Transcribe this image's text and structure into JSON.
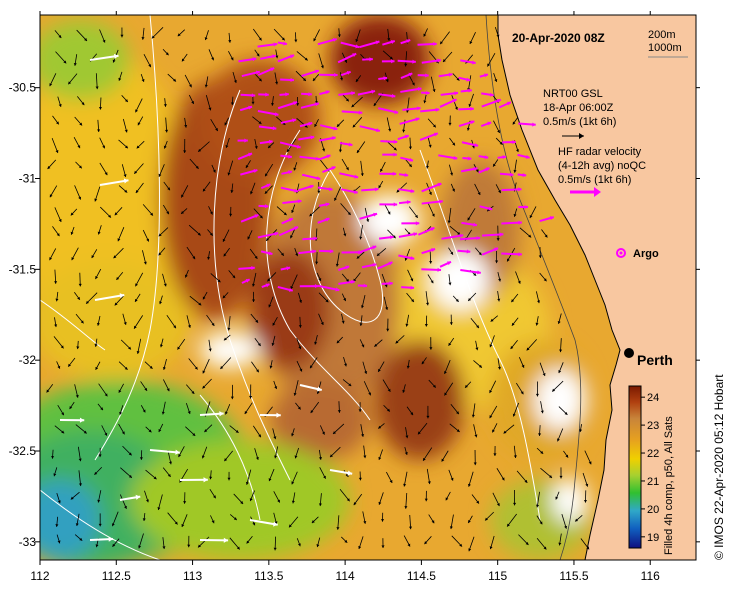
{
  "map": {
    "date_label": "20-Apr-2020 08Z",
    "isobath_labels": [
      "200m",
      "1000m"
    ],
    "gsl_legend": [
      "NRT00 GSL",
      "18-Apr 06:00Z",
      "0.5m/s (1kt 6h)"
    ],
    "radar_legend": [
      "HF radar velocity",
      "(4-12h avg) noQC",
      "0.5m/s (1kt 6h)"
    ],
    "argo_label": "Argo",
    "city_label": "Perth",
    "colorbar_title": "Filled 4h comp, p50, All Sats",
    "credit": "© IMOS 22-Apr-2020 05:12 Hobart",
    "colors": {
      "land": "#f8c7a0",
      "radar_vectors": "#ff00ff",
      "argo": "#ff00ff",
      "contours": "#ffffff"
    }
  },
  "axes": {
    "x_ticks": [
      "112",
      "112.5",
      "113",
      "113.5",
      "114",
      "114.5",
      "115",
      "115.5",
      "116"
    ],
    "y_ticks": [
      "-30.5",
      "-31",
      "-31.5",
      "-32",
      "-32.5",
      "-33"
    ],
    "x_range": [
      112,
      116.3
    ],
    "y_range": [
      -30.1,
      -33.1
    ]
  },
  "colorbar": {
    "ticks": [
      "24",
      "23",
      "22",
      "21",
      "20",
      "19"
    ],
    "range": [
      18.6,
      24.4
    ],
    "stops": [
      "#7a1a00",
      "#b04010",
      "#c8843a",
      "#e6a020",
      "#f0d000",
      "#a8d030",
      "#30c030",
      "#30a8c8",
      "#1060c0",
      "#101080"
    ]
  }
}
